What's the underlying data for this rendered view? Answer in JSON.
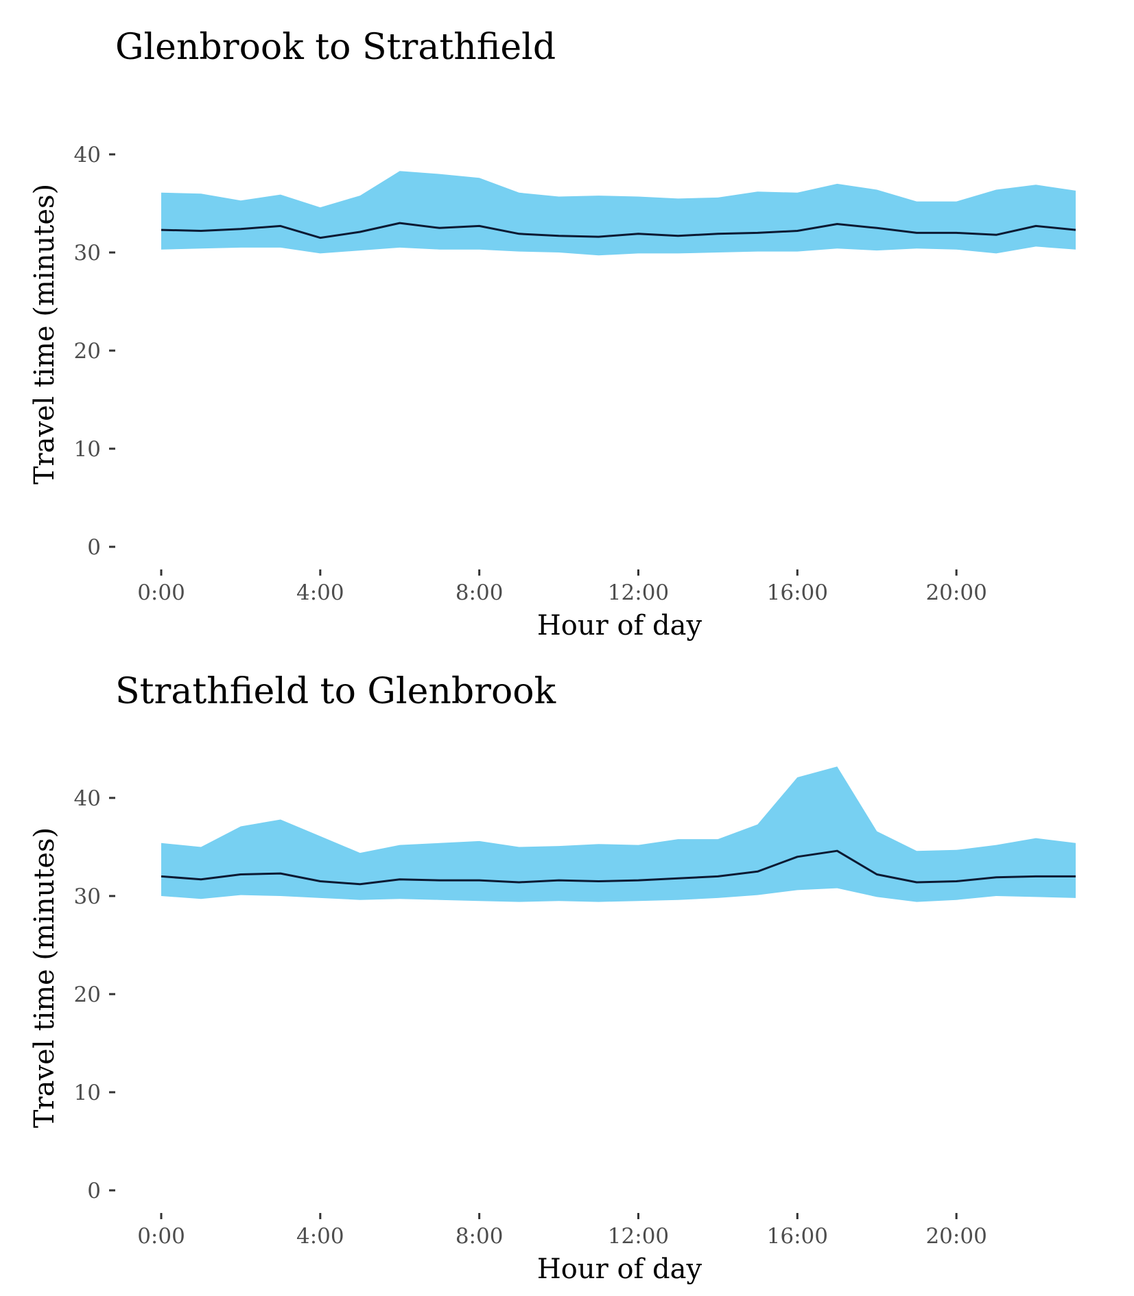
{
  "colors": {
    "band": "#77d0f2",
    "line": "#0c1a33",
    "tick": "#333333",
    "tick_label": "#4d4d4d"
  },
  "chart_data": [
    {
      "type": "area",
      "title": "Glenbrook to Strathfield",
      "xlabel": "Hour of day",
      "ylabel": "Travel time (minutes)",
      "x": [
        0,
        1,
        2,
        3,
        4,
        5,
        6,
        7,
        8,
        9,
        10,
        11,
        12,
        13,
        14,
        15,
        16,
        17,
        18,
        19,
        20,
        21,
        22,
        23
      ],
      "xlim": [
        0,
        23
      ],
      "ylim": [
        0,
        42
      ],
      "xticks": [
        0,
        4,
        8,
        12,
        16,
        20
      ],
      "xtick_labels": [
        "0:00",
        "4:00",
        "8:00",
        "12:00",
        "16:00",
        "20:00"
      ],
      "yticks": [
        0,
        10,
        20,
        30,
        40
      ],
      "ytick_labels": [
        "0",
        "10",
        "20",
        "30",
        "40"
      ],
      "grid": false,
      "series": [
        {
          "role": "median",
          "values": [
            32.3,
            32.2,
            32.4,
            32.7,
            31.5,
            32.1,
            33.0,
            32.5,
            32.7,
            31.9,
            31.7,
            31.6,
            31.9,
            31.7,
            31.9,
            32.0,
            32.2,
            32.9,
            32.5,
            32.0,
            32.0,
            31.8,
            32.7,
            32.3
          ]
        },
        {
          "role": "upper",
          "values": [
            36.1,
            36.0,
            35.3,
            35.9,
            34.6,
            35.8,
            38.3,
            38.0,
            37.6,
            36.1,
            35.7,
            35.8,
            35.7,
            35.5,
            35.6,
            36.2,
            36.1,
            37.0,
            36.4,
            35.2,
            35.2,
            36.4,
            36.9,
            36.3
          ]
        },
        {
          "role": "lower",
          "values": [
            30.3,
            30.4,
            30.5,
            30.5,
            29.9,
            30.2,
            30.5,
            30.3,
            30.3,
            30.1,
            30.0,
            29.7,
            29.9,
            29.9,
            30.0,
            30.1,
            30.1,
            30.4,
            30.2,
            30.4,
            30.3,
            29.9,
            30.6,
            30.3
          ]
        }
      ]
    },
    {
      "type": "area",
      "title": "Strathfield to Glenbrook",
      "xlabel": "Hour of day",
      "ylabel": "Travel time (minutes)",
      "x": [
        0,
        1,
        2,
        3,
        4,
        5,
        6,
        7,
        8,
        9,
        10,
        11,
        12,
        13,
        14,
        15,
        16,
        17,
        18,
        19,
        20,
        21,
        22,
        23
      ],
      "xlim": [
        0,
        23
      ],
      "ylim": [
        0,
        42
      ],
      "xticks": [
        0,
        4,
        8,
        12,
        16,
        20
      ],
      "xtick_labels": [
        "0:00",
        "4:00",
        "8:00",
        "12:00",
        "16:00",
        "20:00"
      ],
      "yticks": [
        0,
        10,
        20,
        30,
        40
      ],
      "ytick_labels": [
        "0",
        "10",
        "20",
        "30",
        "40"
      ],
      "grid": false,
      "series": [
        {
          "role": "median",
          "values": [
            32.0,
            31.7,
            32.2,
            32.3,
            31.5,
            31.2,
            31.7,
            31.6,
            31.6,
            31.4,
            31.6,
            31.5,
            31.6,
            31.8,
            32.0,
            32.5,
            34.0,
            34.6,
            32.2,
            31.4,
            31.5,
            31.9,
            32.0,
            32.0
          ]
        },
        {
          "role": "upper",
          "values": [
            35.4,
            35.0,
            37.1,
            37.8,
            36.1,
            34.4,
            35.2,
            35.4,
            35.6,
            35.0,
            35.1,
            35.3,
            35.2,
            35.8,
            35.8,
            37.3,
            42.1,
            43.2,
            36.6,
            34.6,
            34.7,
            35.2,
            35.9,
            35.4
          ]
        },
        {
          "role": "lower",
          "values": [
            30.0,
            29.7,
            30.1,
            30.0,
            29.8,
            29.6,
            29.7,
            29.6,
            29.5,
            29.4,
            29.5,
            29.4,
            29.5,
            29.6,
            29.8,
            30.1,
            30.6,
            30.8,
            29.9,
            29.4,
            29.6,
            30.0,
            29.9,
            29.8
          ]
        }
      ]
    }
  ]
}
